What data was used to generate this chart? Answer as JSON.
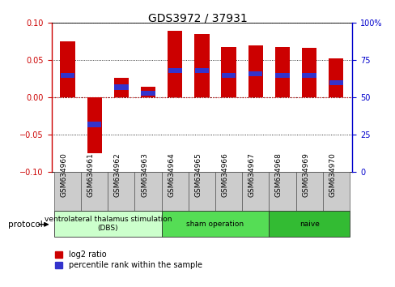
{
  "title": "GDS3972 / 37931",
  "samples": [
    "GSM634960",
    "GSM634961",
    "GSM634962",
    "GSM634963",
    "GSM634964",
    "GSM634965",
    "GSM634966",
    "GSM634967",
    "GSM634968",
    "GSM634969",
    "GSM634970"
  ],
  "log2_ratio": [
    0.075,
    -0.075,
    0.027,
    0.015,
    0.09,
    0.085,
    0.068,
    0.07,
    0.068,
    0.067,
    0.052
  ],
  "percentile_rank": [
    65,
    32,
    57,
    53,
    68,
    68,
    65,
    66,
    65,
    65,
    60
  ],
  "ylim_left": [
    -0.1,
    0.1
  ],
  "ylim_right": [
    0,
    100
  ],
  "yticks_left": [
    -0.1,
    -0.05,
    0,
    0.05,
    0.1
  ],
  "yticks_right": [
    0,
    25,
    50,
    75,
    100
  ],
  "bar_color_red": "#cc0000",
  "bar_color_blue": "#3333cc",
  "protocol_groups": [
    {
      "label": "ventrolateral thalamus stimulation\n(DBS)",
      "start": 0,
      "end": 3,
      "color": "#ccffcc"
    },
    {
      "label": "sham operation",
      "start": 4,
      "end": 7,
      "color": "#55dd55"
    },
    {
      "label": "naive",
      "start": 8,
      "end": 10,
      "color": "#33bb33"
    }
  ],
  "protocol_label": "protocol",
  "legend_red": "log2 ratio",
  "legend_blue": "percentile rank within the sample",
  "bar_width": 0.55,
  "zero_line_color": "#cc0000",
  "ax_left_color": "#cc0000",
  "ax_right_color": "#0000cc",
  "background_fig": "#ffffff",
  "tick_label_fontsize": 7,
  "title_fontsize": 10,
  "sample_box_color": "#cccccc"
}
